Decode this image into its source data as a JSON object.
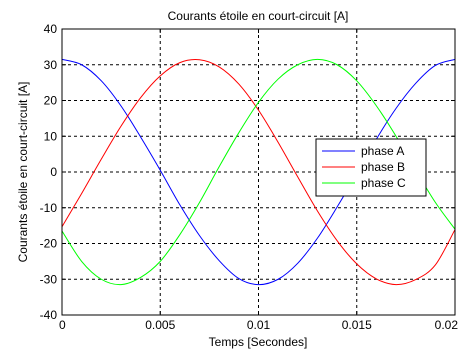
{
  "chart_data": {
    "type": "line",
    "title": "Courants étoile en court-circuit [A]",
    "xlabel": "Temps [Secondes]",
    "ylabel": "Courants étoile en court-circuit [A]",
    "xlim": [
      0,
      0.02
    ],
    "ylim": [
      -40,
      40
    ],
    "xticks": [
      0,
      0.005,
      0.01,
      0.015,
      0.02
    ],
    "xtick_labels": [
      "0",
      "0.005",
      "0.01",
      "0.015",
      "0.02"
    ],
    "yticks": [
      -40,
      -30,
      -20,
      -10,
      0,
      10,
      20,
      30,
      40
    ],
    "ytick_labels": [
      "-40",
      "-30",
      "-20",
      "-10",
      "0",
      "10",
      "20",
      "30",
      "40"
    ],
    "grid": true,
    "legend_position": "right",
    "series": [
      {
        "name": "phase A",
        "color": "#0000ff",
        "x": [
          0,
          0.001,
          0.002,
          0.003,
          0.004,
          0.005,
          0.006,
          0.007,
          0.008,
          0.009,
          0.01,
          0.011,
          0.012,
          0.013,
          0.014,
          0.015,
          0.016,
          0.017,
          0.018,
          0.019,
          0.02
        ],
        "y": [
          31.5,
          30.0,
          25.5,
          18.5,
          9.8,
          0.5,
          -9.2,
          -17.8,
          -24.8,
          -29.8,
          -31.5,
          -30.0,
          -25.5,
          -18.5,
          -9.8,
          -0.5,
          9.2,
          17.8,
          24.8,
          29.8,
          31.5
        ]
      },
      {
        "name": "phase B",
        "color": "#ff0000",
        "x": [
          0,
          0.001,
          0.002,
          0.003,
          0.004,
          0.005,
          0.006,
          0.007,
          0.008,
          0.009,
          0.01,
          0.011,
          0.012,
          0.013,
          0.014,
          0.015,
          0.016,
          0.017,
          0.018,
          0.019,
          0.02
        ],
        "y": [
          -15.3,
          -6.0,
          3.6,
          12.8,
          20.8,
          26.9,
          30.6,
          31.4,
          29.4,
          24.6,
          17.3,
          8.3,
          -1.4,
          -10.9,
          -19.2,
          -25.7,
          -29.9,
          -31.5,
          -30.1,
          -26.0,
          -16.1
        ]
      },
      {
        "name": "phase C",
        "color": "#00ff00",
        "x": [
          0,
          0.001,
          0.002,
          0.003,
          0.004,
          0.005,
          0.006,
          0.007,
          0.008,
          0.009,
          0.01,
          0.011,
          0.012,
          0.013,
          0.014,
          0.015,
          0.016,
          0.017,
          0.018,
          0.019,
          0.02
        ],
        "y": [
          -16.5,
          -25.0,
          -30.0,
          -31.5,
          -29.5,
          -25.0,
          -17.5,
          -8.5,
          1.5,
          11.0,
          19.5,
          26.0,
          30.0,
          31.5,
          30.0,
          25.5,
          18.5,
          10.0,
          0.5,
          -8.5,
          -16.0
        ]
      }
    ]
  }
}
